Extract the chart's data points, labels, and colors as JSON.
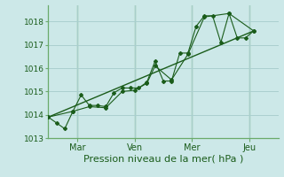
{
  "xlabel": "Pression niveau de la mer( hPa )",
  "bg_color": "#cce8e8",
  "grid_color": "#aacfcf",
  "line_color": "#1a5c1a",
  "vline_color": "#6aaa6a",
  "ylim": [
    1013,
    1018.7
  ],
  "xlim": [
    0,
    56
  ],
  "yticks": [
    1013,
    1014,
    1015,
    1016,
    1017,
    1018
  ],
  "ytick_labels": [
    "1013",
    "1014",
    "1015",
    "1016",
    "1017",
    "1018"
  ],
  "xtick_positions": [
    7,
    21,
    35,
    49
  ],
  "xtick_labels": [
    "Mar",
    "Ven",
    "Mer",
    "Jeu"
  ],
  "vline_positions": [
    7,
    21,
    35,
    49
  ],
  "series1": [
    [
      0,
      1013.9
    ],
    [
      2,
      1013.65
    ],
    [
      4,
      1013.4
    ],
    [
      6,
      1014.15
    ],
    [
      8,
      1014.85
    ],
    [
      10,
      1014.4
    ],
    [
      12,
      1014.4
    ],
    [
      14,
      1014.35
    ],
    [
      16,
      1014.95
    ],
    [
      18,
      1015.15
    ],
    [
      20,
      1015.15
    ],
    [
      22,
      1015.15
    ],
    [
      24,
      1015.4
    ],
    [
      26,
      1016.3
    ],
    [
      28,
      1015.45
    ],
    [
      30,
      1015.45
    ],
    [
      32,
      1016.65
    ],
    [
      34,
      1016.65
    ],
    [
      36,
      1017.8
    ],
    [
      38,
      1018.25
    ],
    [
      40,
      1018.25
    ],
    [
      42,
      1017.1
    ],
    [
      44,
      1018.35
    ],
    [
      46,
      1017.3
    ],
    [
      48,
      1017.3
    ],
    [
      50,
      1017.6
    ]
  ],
  "series2": [
    [
      0,
      1013.9
    ],
    [
      6,
      1014.15
    ],
    [
      10,
      1014.35
    ],
    [
      14,
      1014.3
    ],
    [
      18,
      1015.0
    ],
    [
      21,
      1015.05
    ],
    [
      24,
      1015.35
    ],
    [
      26,
      1016.1
    ],
    [
      30,
      1015.5
    ],
    [
      34,
      1016.6
    ],
    [
      38,
      1018.2
    ],
    [
      44,
      1018.35
    ],
    [
      50,
      1017.6
    ]
  ],
  "series3_linear": [
    [
      0,
      1013.9
    ],
    [
      50,
      1017.6
    ]
  ]
}
